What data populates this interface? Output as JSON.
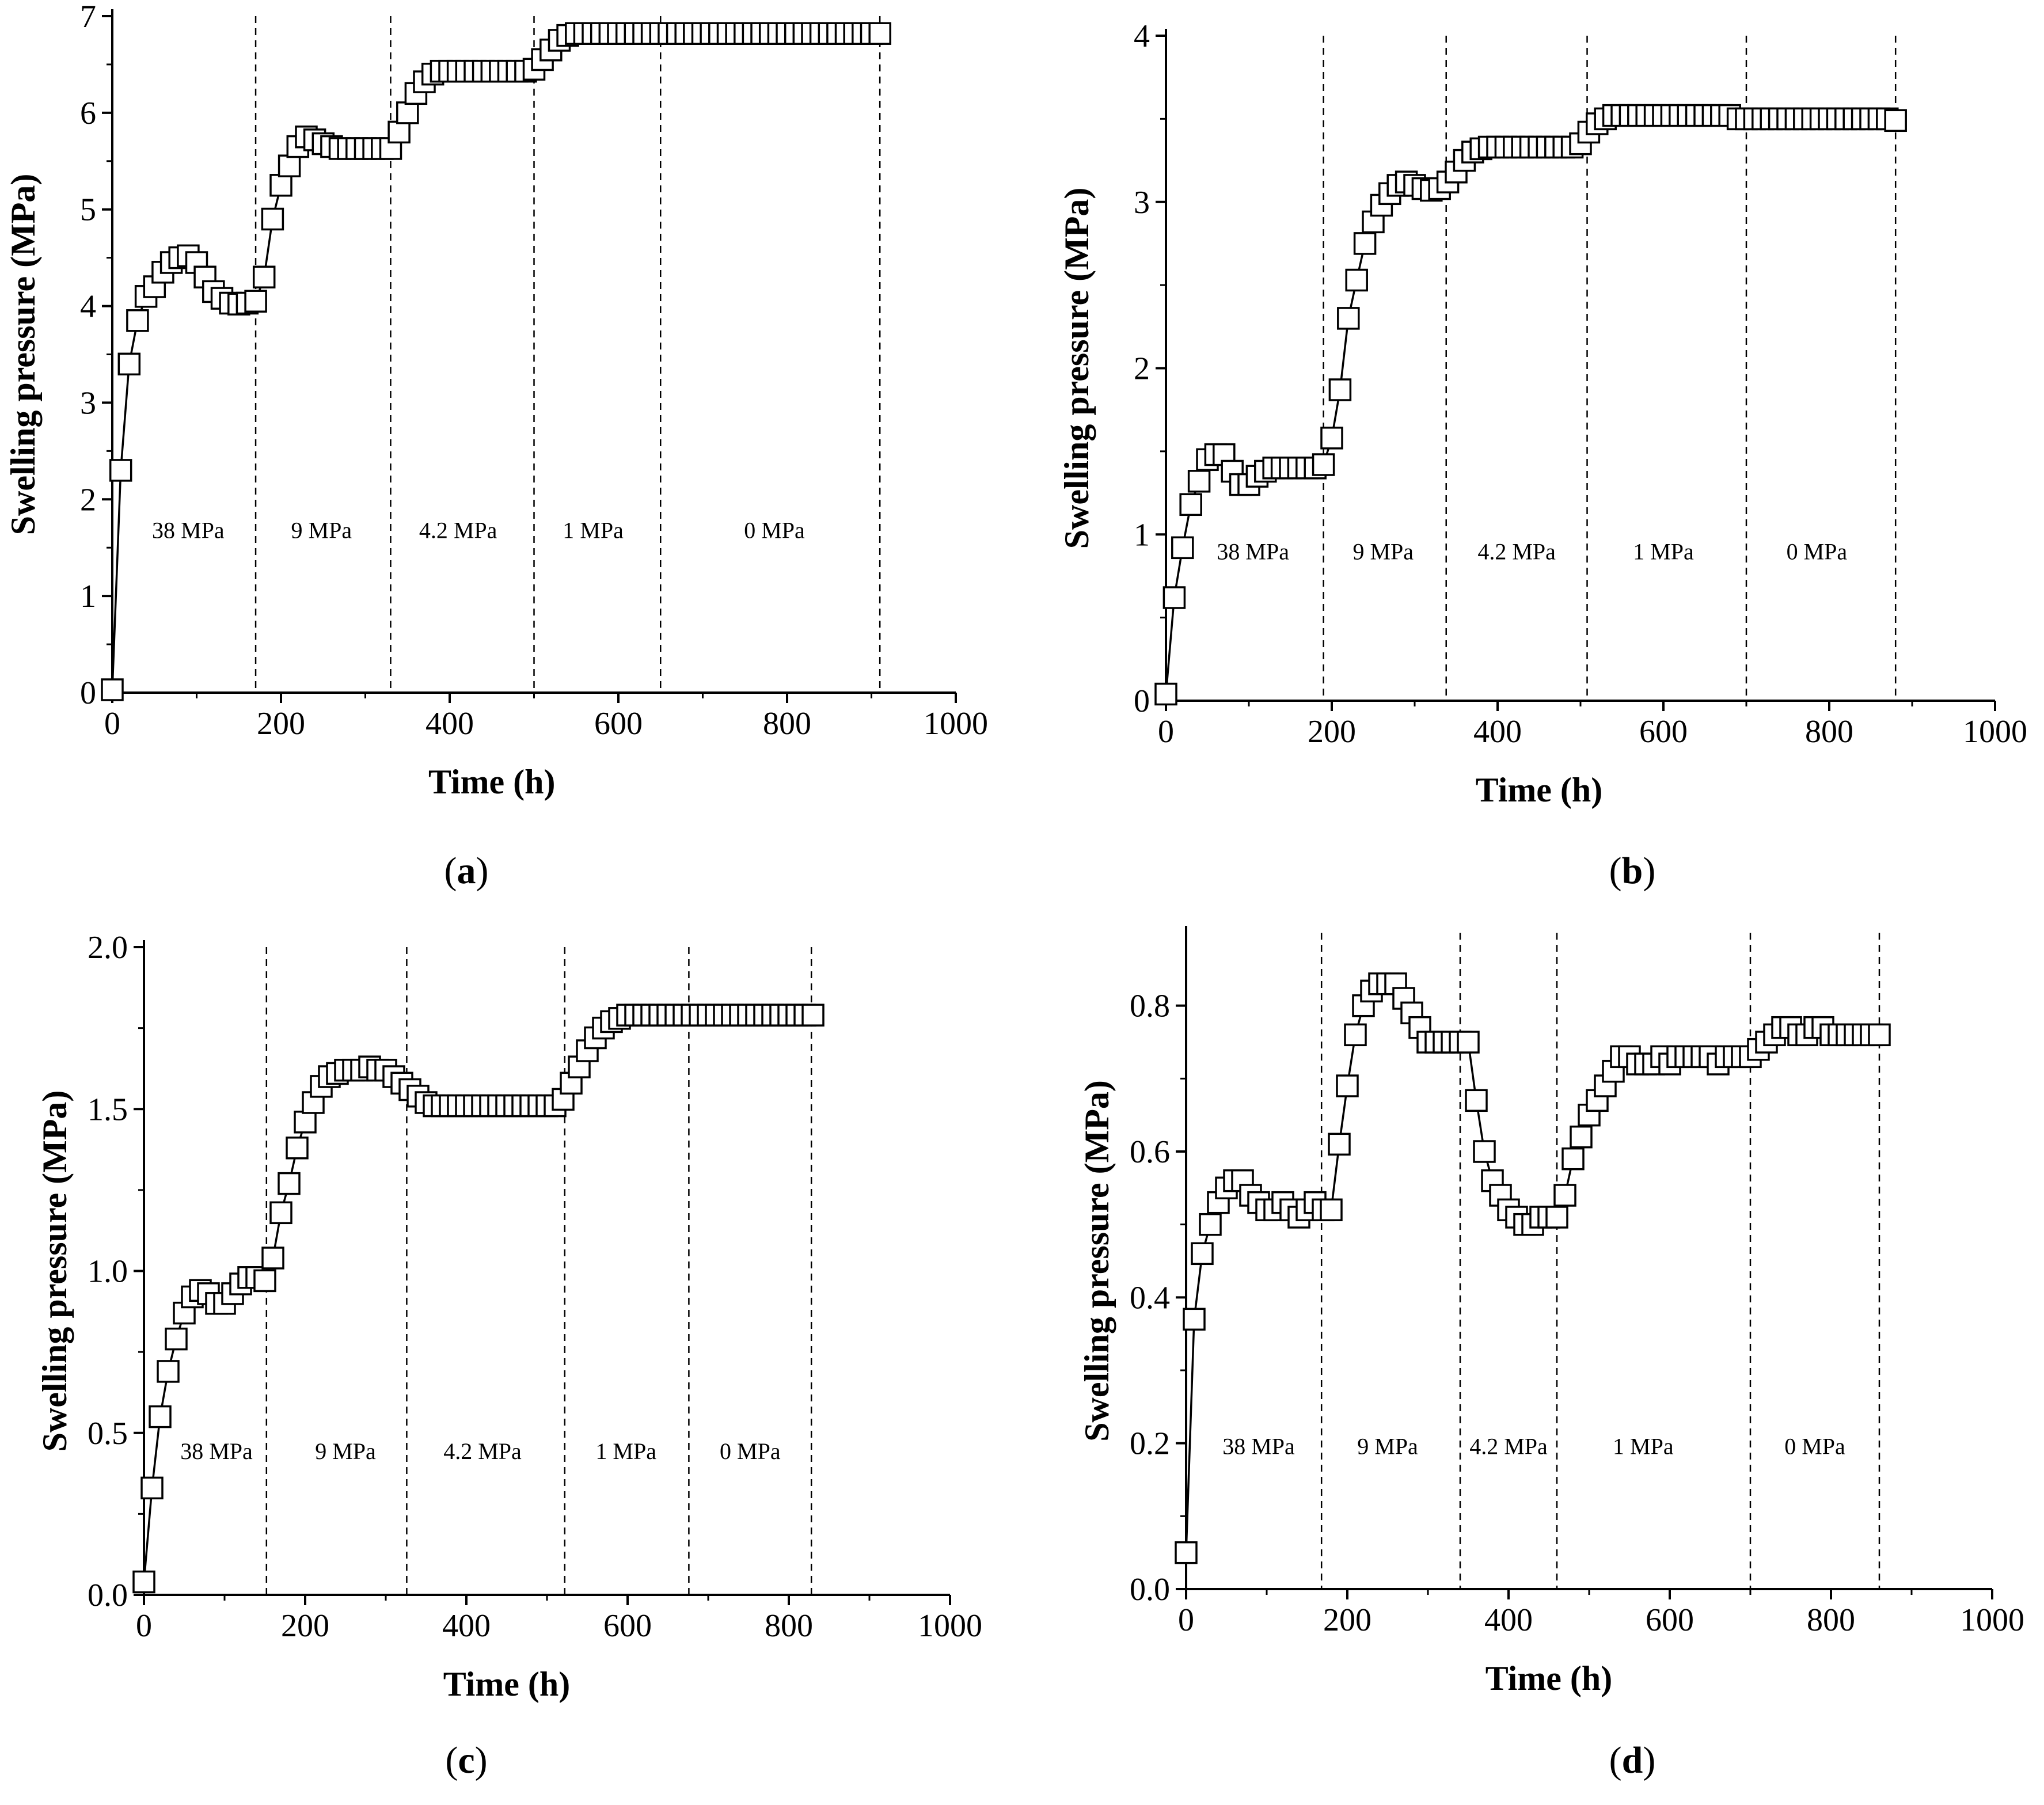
{
  "figure": {
    "panels": [
      {
        "id": "a",
        "caption_letter": "a"
      },
      {
        "id": "b",
        "caption_letter": "b"
      },
      {
        "id": "c",
        "caption_letter": "c"
      },
      {
        "id": "d",
        "caption_letter": "d"
      }
    ]
  },
  "chart_data": [
    {
      "panel": "a",
      "type": "line",
      "marker": "open-square",
      "xlabel": "Time (h)",
      "ylabel": "Swelling pressure (MPa)",
      "xlim": [
        0,
        1000
      ],
      "ylim": [
        0,
        7
      ],
      "xticks": [
        0,
        200,
        400,
        600,
        800,
        1000
      ],
      "xtick_labels": [
        "0",
        "200",
        "400",
        "600",
        "800",
        "1000"
      ],
      "yticks": [
        0,
        1,
        2,
        3,
        4,
        5,
        6,
        7
      ],
      "ytick_labels": [
        "0",
        "1",
        "2",
        "3",
        "4",
        "5",
        "6",
        "7"
      ],
      "stage_boundaries": [
        170,
        330,
        500,
        650,
        910
      ],
      "stages": [
        {
          "label": "38 MPa",
          "x": 90
        },
        {
          "label": "9 MPa",
          "x": 248
        },
        {
          "label": "4.2 MPa",
          "x": 410
        },
        {
          "label": "1 MPa",
          "x": 570
        },
        {
          "label": "0 MPa",
          "x": 785
        }
      ],
      "stage_label_y": 1.6,
      "x": [
        0,
        10,
        20,
        30,
        40,
        50,
        60,
        70,
        80,
        90,
        100,
        110,
        120,
        130,
        140,
        150,
        160,
        170,
        180,
        190,
        200,
        210,
        220,
        230,
        240,
        250,
        260,
        270,
        280,
        290,
        300,
        310,
        320,
        330,
        340,
        350,
        360,
        370,
        380,
        390,
        400,
        410,
        420,
        430,
        440,
        450,
        460,
        470,
        480,
        490,
        500,
        510,
        520,
        530,
        540,
        550,
        560,
        570,
        580,
        590,
        600,
        610,
        620,
        630,
        640,
        650,
        660,
        670,
        680,
        690,
        700,
        710,
        720,
        730,
        740,
        750,
        760,
        770,
        780,
        790,
        800,
        810,
        820,
        830,
        840,
        850,
        860,
        870,
        880,
        890,
        900,
        910
      ],
      "y": [
        0.03,
        2.3,
        3.4,
        3.85,
        4.1,
        4.2,
        4.35,
        4.45,
        4.5,
        4.52,
        4.45,
        4.3,
        4.15,
        4.08,
        4.03,
        4.02,
        4.03,
        4.05,
        4.3,
        4.9,
        5.25,
        5.45,
        5.65,
        5.75,
        5.72,
        5.68,
        5.65,
        5.63,
        5.63,
        5.63,
        5.63,
        5.63,
        5.63,
        5.63,
        5.8,
        6.0,
        6.2,
        6.32,
        6.4,
        6.43,
        6.43,
        6.43,
        6.43,
        6.43,
        6.43,
        6.43,
        6.43,
        6.43,
        6.43,
        6.43,
        6.45,
        6.55,
        6.65,
        6.75,
        6.8,
        6.82,
        6.82,
        6.82,
        6.82,
        6.82,
        6.82,
        6.82,
        6.82,
        6.82,
        6.82,
        6.82,
        6.82,
        6.82,
        6.82,
        6.82,
        6.82,
        6.82,
        6.82,
        6.82,
        6.82,
        6.82,
        6.82,
        6.82,
        6.82,
        6.82,
        6.82,
        6.82,
        6.82,
        6.82,
        6.82,
        6.82,
        6.82,
        6.82,
        6.82,
        6.82,
        6.82,
        6.82
      ]
    },
    {
      "panel": "b",
      "type": "line",
      "marker": "open-square",
      "xlabel": "Time (h)",
      "ylabel": "Swelling pressure (MPa)",
      "xlim": [
        0,
        1000
      ],
      "ylim": [
        0,
        4
      ],
      "xticks": [
        0,
        200,
        400,
        600,
        800,
        1000
      ],
      "xtick_labels": [
        "0",
        "200",
        "400",
        "600",
        "800",
        "1000"
      ],
      "yticks": [
        0,
        1,
        2,
        3,
        4
      ],
      "ytick_labels": [
        "0",
        "1",
        "2",
        "3",
        "4"
      ],
      "stage_boundaries": [
        190,
        338,
        508,
        700,
        880
      ],
      "stages": [
        {
          "label": "38 MPa",
          "x": 105
        },
        {
          "label": "9 MPa",
          "x": 262
        },
        {
          "label": "4.2 MPa",
          "x": 423
        },
        {
          "label": "1 MPa",
          "x": 600
        },
        {
          "label": "0 MPa",
          "x": 785
        }
      ],
      "stage_label_y": 0.85,
      "x": [
        0,
        10,
        20,
        30,
        40,
        50,
        60,
        70,
        80,
        90,
        100,
        110,
        120,
        130,
        140,
        150,
        160,
        170,
        180,
        190,
        200,
        210,
        220,
        230,
        240,
        250,
        260,
        270,
        280,
        290,
        300,
        310,
        320,
        330,
        340,
        350,
        360,
        370,
        380,
        390,
        400,
        410,
        420,
        430,
        440,
        450,
        460,
        470,
        480,
        490,
        500,
        510,
        520,
        530,
        540,
        550,
        560,
        570,
        580,
        590,
        600,
        610,
        620,
        630,
        640,
        650,
        660,
        670,
        680,
        690,
        700,
        710,
        720,
        730,
        740,
        750,
        760,
        770,
        780,
        790,
        800,
        810,
        820,
        830,
        840,
        850,
        860,
        870,
        880
      ],
      "y": [
        0.04,
        0.62,
        0.92,
        1.18,
        1.32,
        1.45,
        1.48,
        1.48,
        1.38,
        1.3,
        1.3,
        1.35,
        1.38,
        1.4,
        1.4,
        1.4,
        1.4,
        1.4,
        1.4,
        1.42,
        1.58,
        1.87,
        2.3,
        2.53,
        2.75,
        2.88,
        2.98,
        3.05,
        3.1,
        3.12,
        3.1,
        3.08,
        3.07,
        3.08,
        3.12,
        3.18,
        3.25,
        3.3,
        3.32,
        3.33,
        3.33,
        3.33,
        3.33,
        3.33,
        3.33,
        3.33,
        3.33,
        3.33,
        3.33,
        3.33,
        3.35,
        3.42,
        3.47,
        3.5,
        3.52,
        3.52,
        3.52,
        3.52,
        3.52,
        3.52,
        3.52,
        3.52,
        3.52,
        3.52,
        3.52,
        3.52,
        3.52,
        3.52,
        3.52,
        3.5,
        3.5,
        3.5,
        3.5,
        3.5,
        3.5,
        3.5,
        3.5,
        3.5,
        3.5,
        3.5,
        3.5,
        3.5,
        3.5,
        3.5,
        3.5,
        3.5,
        3.5,
        3.5,
        3.49
      ]
    },
    {
      "panel": "c",
      "type": "line",
      "marker": "open-square",
      "xlabel": "Time (h)",
      "ylabel": "Swelling pressure (MPa)",
      "xlim": [
        0,
        1000
      ],
      "ylim": [
        0.0,
        2.0
      ],
      "xticks": [
        0,
        200,
        400,
        600,
        800,
        1000
      ],
      "xtick_labels": [
        "0",
        "200",
        "400",
        "600",
        "800",
        "1000"
      ],
      "yticks": [
        0.0,
        0.5,
        1.0,
        1.5,
        2.0
      ],
      "ytick_labels": [
        "0.0",
        "0.5",
        "1.0",
        "1.5",
        "2.0"
      ],
      "stage_boundaries": [
        152,
        326,
        522,
        676,
        828
      ],
      "stages": [
        {
          "label": "38 MPa",
          "x": 90
        },
        {
          "label": "9 MPa",
          "x": 250
        },
        {
          "label": "4.2 MPa",
          "x": 420
        },
        {
          "label": "1 MPa",
          "x": 598
        },
        {
          "label": "0 MPa",
          "x": 752
        }
      ],
      "stage_label_y": 0.42,
      "x": [
        0,
        10,
        20,
        30,
        40,
        50,
        60,
        70,
        80,
        90,
        100,
        110,
        120,
        130,
        140,
        150,
        160,
        170,
        180,
        190,
        200,
        210,
        220,
        230,
        240,
        250,
        260,
        270,
        280,
        290,
        300,
        310,
        320,
        330,
        340,
        350,
        360,
        370,
        380,
        390,
        400,
        410,
        420,
        430,
        440,
        450,
        460,
        470,
        480,
        490,
        500,
        510,
        520,
        530,
        540,
        550,
        560,
        570,
        580,
        590,
        600,
        610,
        620,
        630,
        640,
        650,
        660,
        670,
        680,
        690,
        700,
        710,
        720,
        730,
        740,
        750,
        760,
        770,
        780,
        790,
        800,
        810,
        820,
        830
      ],
      "y": [
        0.04,
        0.33,
        0.55,
        0.69,
        0.79,
        0.87,
        0.92,
        0.94,
        0.93,
        0.9,
        0.9,
        0.93,
        0.96,
        0.98,
        0.98,
        0.97,
        1.04,
        1.18,
        1.27,
        1.38,
        1.46,
        1.52,
        1.57,
        1.6,
        1.61,
        1.62,
        1.62,
        1.62,
        1.63,
        1.62,
        1.62,
        1.6,
        1.58,
        1.56,
        1.54,
        1.52,
        1.51,
        1.51,
        1.51,
        1.51,
        1.51,
        1.51,
        1.51,
        1.51,
        1.51,
        1.51,
        1.51,
        1.51,
        1.51,
        1.51,
        1.51,
        1.51,
        1.53,
        1.58,
        1.63,
        1.68,
        1.72,
        1.75,
        1.77,
        1.78,
        1.79,
        1.79,
        1.79,
        1.79,
        1.79,
        1.79,
        1.79,
        1.79,
        1.79,
        1.79,
        1.79,
        1.79,
        1.79,
        1.79,
        1.79,
        1.79,
        1.79,
        1.79,
        1.79,
        1.79,
        1.79,
        1.79,
        1.79,
        1.79
      ]
    },
    {
      "panel": "d",
      "type": "line",
      "marker": "open-square",
      "xlabel": "Time (h)",
      "ylabel": "Swelling pressure (MPa)",
      "xlim": [
        0,
        1000
      ],
      "ylim": [
        0.0,
        0.9
      ],
      "xticks": [
        0,
        200,
        400,
        600,
        800,
        1000
      ],
      "xtick_labels": [
        "0",
        "200",
        "400",
        "600",
        "800",
        "1000"
      ],
      "yticks": [
        0.0,
        0.2,
        0.4,
        0.6,
        0.8
      ],
      "ytick_labels": [
        "0.0",
        "0.2",
        "0.4",
        "0.6",
        "0.8"
      ],
      "stage_boundaries": [
        168,
        340,
        460,
        700,
        860
      ],
      "stages": [
        {
          "label": "38 MPa",
          "x": 90
        },
        {
          "label": "9 MPa",
          "x": 250
        },
        {
          "label": "4.2 MPa",
          "x": 400
        },
        {
          "label": "1 MPa",
          "x": 567
        },
        {
          "label": "0 MPa",
          "x": 780
        }
      ],
      "stage_label_y": 0.185,
      "x": [
        0,
        10,
        20,
        30,
        40,
        50,
        60,
        70,
        80,
        90,
        100,
        110,
        120,
        130,
        140,
        150,
        160,
        170,
        180,
        190,
        200,
        210,
        220,
        230,
        240,
        250,
        260,
        270,
        280,
        290,
        300,
        310,
        320,
        330,
        340,
        350,
        360,
        370,
        380,
        390,
        400,
        410,
        420,
        430,
        440,
        450,
        460,
        470,
        480,
        490,
        500,
        510,
        520,
        530,
        540,
        550,
        560,
        570,
        580,
        590,
        600,
        610,
        620,
        630,
        640,
        650,
        660,
        670,
        680,
        690,
        700,
        710,
        720,
        730,
        740,
        750,
        760,
        770,
        780,
        790,
        800,
        810,
        820,
        830,
        840,
        850,
        860
      ],
      "y": [
        0.05,
        0.37,
        0.46,
        0.5,
        0.53,
        0.55,
        0.56,
        0.56,
        0.54,
        0.53,
        0.52,
        0.52,
        0.53,
        0.52,
        0.51,
        0.52,
        0.53,
        0.52,
        0.52,
        0.61,
        0.69,
        0.76,
        0.8,
        0.82,
        0.83,
        0.83,
        0.83,
        0.81,
        0.79,
        0.77,
        0.75,
        0.75,
        0.75,
        0.75,
        0.75,
        0.75,
        0.67,
        0.6,
        0.56,
        0.54,
        0.52,
        0.51,
        0.5,
        0.5,
        0.51,
        0.51,
        0.51,
        0.54,
        0.59,
        0.62,
        0.65,
        0.67,
        0.69,
        0.71,
        0.73,
        0.73,
        0.72,
        0.72,
        0.72,
        0.73,
        0.72,
        0.73,
        0.73,
        0.73,
        0.73,
        0.73,
        0.72,
        0.73,
        0.73,
        0.73,
        0.73,
        0.74,
        0.75,
        0.76,
        0.77,
        0.77,
        0.76,
        0.76,
        0.77,
        0.77,
        0.76,
        0.76,
        0.76,
        0.76,
        0.76,
        0.76,
        0.76
      ]
    }
  ]
}
